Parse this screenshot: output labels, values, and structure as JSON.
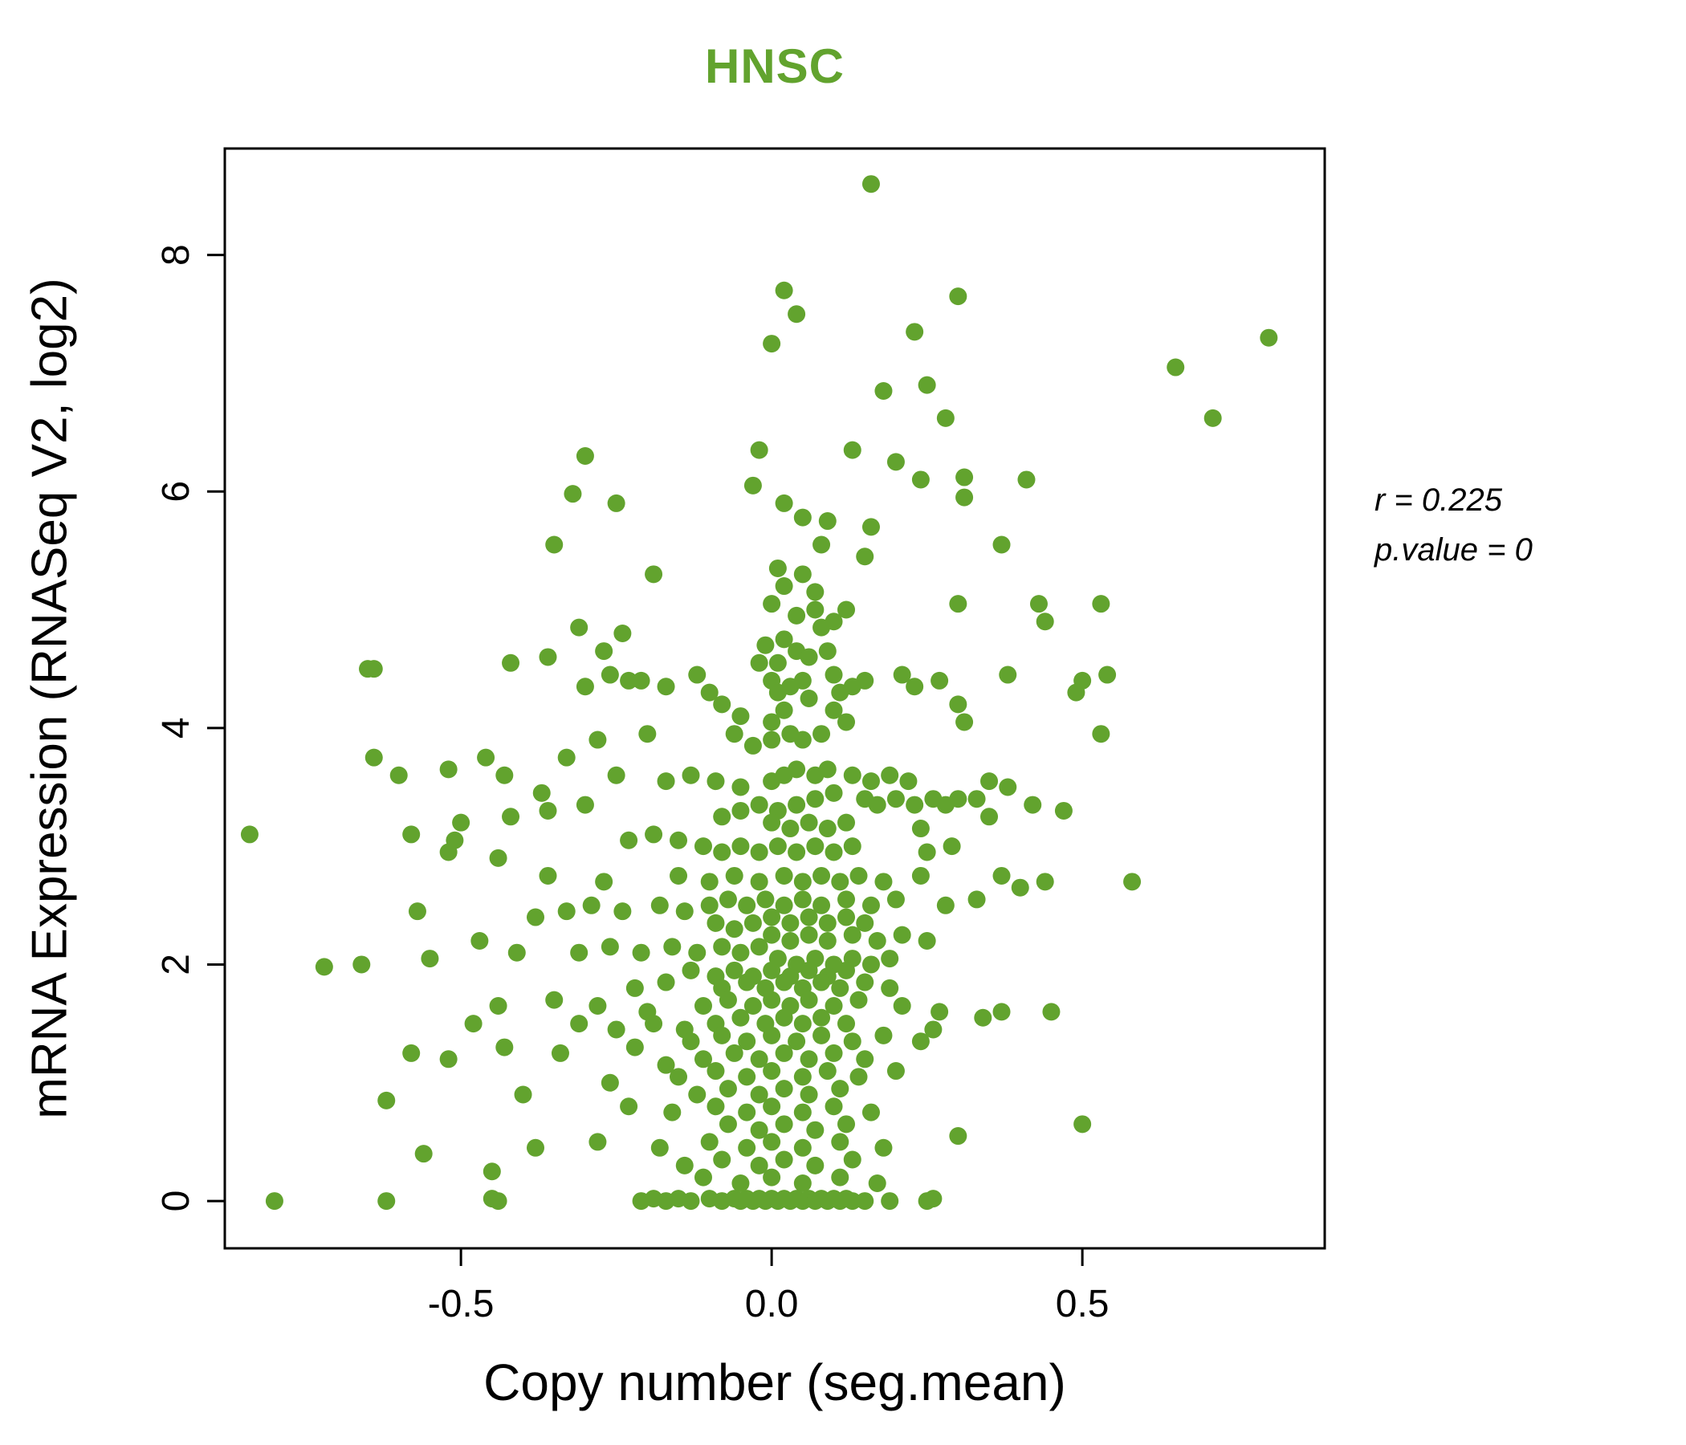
{
  "figure": {
    "title": "HNSC",
    "x_axis_title": "Copy number (seg.mean)",
    "y_axis_title": "mRNA Expression (RNASeq V2, log2)",
    "annotation": {
      "line1": "r = 0.225",
      "line2": "p.value = 0"
    }
  },
  "colors": {
    "accent_green": "#62a32e",
    "axis_black": "#000000",
    "background": "#ffffff"
  },
  "chart_data": {
    "type": "scatter",
    "title": "HNSC",
    "xlabel": "Copy number (seg.mean)",
    "ylabel": "mRNA Expression (RNASeq V2, log2)",
    "xlim": [
      -0.88,
      0.89
    ],
    "ylim": [
      -0.4,
      8.9
    ],
    "x_tick_values": [
      -0.5,
      0.0,
      0.5
    ],
    "x_tick_labels": [
      "-0.5",
      "0.0",
      "0.5"
    ],
    "y_tick_values": [
      0,
      2,
      4,
      6,
      8
    ],
    "y_tick_labels": [
      "0",
      "2",
      "4",
      "6",
      "8"
    ],
    "grid": false,
    "legend": false,
    "point_color": "#62a32e",
    "point_radius_px": 11,
    "correlation_r": 0.225,
    "p_value": 0,
    "points": [
      [
        0.16,
        8.6
      ],
      [
        0.02,
        7.7
      ],
      [
        0.04,
        7.5
      ],
      [
        0.3,
        7.65
      ],
      [
        0.23,
        7.35
      ],
      [
        0.0,
        7.25
      ],
      [
        0.8,
        7.3
      ],
      [
        0.65,
        7.05
      ],
      [
        0.71,
        6.62
      ],
      [
        0.25,
        6.9
      ],
      [
        0.28,
        6.62
      ],
      [
        0.18,
        6.85
      ],
      [
        0.13,
        6.35
      ],
      [
        -0.3,
        6.3
      ],
      [
        -0.32,
        5.98
      ],
      [
        0.2,
        6.25
      ],
      [
        0.24,
        6.1
      ],
      [
        0.31,
        6.12
      ],
      [
        -0.02,
        6.35
      ],
      [
        -0.03,
        6.05
      ],
      [
        0.02,
        5.9
      ],
      [
        0.05,
        5.78
      ],
      [
        0.09,
        5.75
      ],
      [
        0.08,
        5.55
      ],
      [
        0.16,
        5.7
      ],
      [
        0.15,
        5.45
      ],
      [
        -0.35,
        5.55
      ],
      [
        -0.19,
        5.3
      ],
      [
        0.01,
        5.35
      ],
      [
        0.02,
        5.2
      ],
      [
        0.0,
        5.05
      ],
      [
        0.04,
        4.95
      ],
      [
        0.07,
        5.0
      ],
      [
        0.3,
        5.05
      ],
      [
        0.37,
        5.55
      ],
      [
        0.43,
        5.05
      ],
      [
        0.44,
        4.9
      ],
      [
        0.53,
        5.05
      ],
      [
        0.08,
        4.85
      ],
      [
        0.09,
        4.65
      ],
      [
        -0.31,
        4.85
      ],
      [
        -0.36,
        4.6
      ],
      [
        -0.64,
        4.5
      ],
      [
        -0.42,
        4.55
      ],
      [
        -0.26,
        4.45
      ],
      [
        -0.23,
        4.4
      ],
      [
        0.38,
        4.45
      ],
      [
        0.5,
        4.4
      ],
      [
        0.54,
        4.45
      ],
      [
        0.49,
        4.3
      ],
      [
        0.53,
        3.95
      ],
      [
        0.3,
        4.2
      ],
      [
        0.31,
        4.05
      ],
      [
        -0.02,
        4.55
      ],
      [
        0.0,
        4.4
      ],
      [
        0.01,
        4.3
      ],
      [
        0.03,
        4.35
      ],
      [
        0.05,
        4.4
      ],
      [
        0.06,
        4.25
      ],
      [
        0.02,
        4.15
      ],
      [
        0.0,
        4.05
      ],
      [
        -0.05,
        4.1
      ],
      [
        -0.08,
        4.2
      ],
      [
        -0.1,
        4.3
      ],
      [
        -0.12,
        4.45
      ],
      [
        -0.17,
        4.35
      ],
      [
        0.1,
        4.45
      ],
      [
        0.11,
        4.3
      ],
      [
        0.13,
        4.35
      ],
      [
        0.15,
        4.4
      ],
      [
        0.1,
        4.15
      ],
      [
        0.12,
        4.05
      ],
      [
        0.08,
        3.95
      ],
      [
        0.05,
        3.9
      ],
      [
        0.03,
        3.95
      ],
      [
        0.0,
        3.9
      ],
      [
        -0.03,
        3.85
      ],
      [
        -0.06,
        3.95
      ],
      [
        -0.2,
        3.95
      ],
      [
        -0.28,
        3.9
      ],
      [
        -0.33,
        3.75
      ],
      [
        -0.46,
        3.75
      ],
      [
        -0.64,
        3.75
      ],
      [
        -0.52,
        3.65
      ],
      [
        -0.43,
        3.6
      ],
      [
        -0.37,
        3.45
      ],
      [
        -0.36,
        3.3
      ],
      [
        -0.3,
        3.35
      ],
      [
        -0.42,
        3.25
      ],
      [
        -0.5,
        3.2
      ],
      [
        -0.51,
        3.05
      ],
      [
        -0.52,
        2.95
      ],
      [
        -0.58,
        3.1
      ],
      [
        -0.84,
        3.1
      ],
      [
        -0.25,
        3.6
      ],
      [
        -0.17,
        3.55
      ],
      [
        -0.13,
        3.6
      ],
      [
        -0.09,
        3.55
      ],
      [
        -0.05,
        3.5
      ],
      [
        0.0,
        3.55
      ],
      [
        0.02,
        3.6
      ],
      [
        0.04,
        3.65
      ],
      [
        0.07,
        3.6
      ],
      [
        0.09,
        3.65
      ],
      [
        0.13,
        3.6
      ],
      [
        0.16,
        3.55
      ],
      [
        0.19,
        3.6
      ],
      [
        0.22,
        3.55
      ],
      [
        0.15,
        3.4
      ],
      [
        0.17,
        3.35
      ],
      [
        0.2,
        3.4
      ],
      [
        0.23,
        3.35
      ],
      [
        0.26,
        3.4
      ],
      [
        0.28,
        3.35
      ],
      [
        0.3,
        3.4
      ],
      [
        0.1,
        3.45
      ],
      [
        0.07,
        3.4
      ],
      [
        0.04,
        3.35
      ],
      [
        0.01,
        3.3
      ],
      [
        -0.02,
        3.35
      ],
      [
        -0.05,
        3.3
      ],
      [
        -0.08,
        3.25
      ],
      [
        0.0,
        3.2
      ],
      [
        0.03,
        3.15
      ],
      [
        0.06,
        3.2
      ],
      [
        0.09,
        3.15
      ],
      [
        0.12,
        3.2
      ],
      [
        0.24,
        3.15
      ],
      [
        0.35,
        3.25
      ],
      [
        0.42,
        3.35
      ],
      [
        0.29,
        3.0
      ],
      [
        0.25,
        2.95
      ],
      [
        0.13,
        3.0
      ],
      [
        0.1,
        2.95
      ],
      [
        0.07,
        3.0
      ],
      [
        0.04,
        2.95
      ],
      [
        0.01,
        3.0
      ],
      [
        -0.02,
        2.95
      ],
      [
        -0.05,
        3.0
      ],
      [
        -0.08,
        2.95
      ],
      [
        -0.11,
        3.0
      ],
      [
        -0.15,
        3.05
      ],
      [
        -0.19,
        3.1
      ],
      [
        -0.23,
        3.05
      ],
      [
        -0.44,
        2.9
      ],
      [
        -0.36,
        2.75
      ],
      [
        -0.27,
        2.7
      ],
      [
        -0.15,
        2.75
      ],
      [
        -0.1,
        2.7
      ],
      [
        -0.06,
        2.75
      ],
      [
        -0.02,
        2.7
      ],
      [
        0.02,
        2.75
      ],
      [
        0.05,
        2.7
      ],
      [
        0.08,
        2.75
      ],
      [
        0.11,
        2.7
      ],
      [
        0.14,
        2.75
      ],
      [
        0.18,
        2.7
      ],
      [
        0.24,
        2.75
      ],
      [
        0.37,
        2.75
      ],
      [
        0.4,
        2.65
      ],
      [
        0.44,
        2.7
      ],
      [
        0.58,
        2.7
      ],
      [
        0.33,
        2.55
      ],
      [
        0.28,
        2.5
      ],
      [
        0.2,
        2.55
      ],
      [
        0.16,
        2.5
      ],
      [
        0.12,
        2.55
      ],
      [
        0.08,
        2.5
      ],
      [
        0.05,
        2.55
      ],
      [
        0.02,
        2.5
      ],
      [
        -0.01,
        2.55
      ],
      [
        -0.04,
        2.5
      ],
      [
        -0.07,
        2.55
      ],
      [
        -0.1,
        2.5
      ],
      [
        -0.14,
        2.45
      ],
      [
        -0.18,
        2.5
      ],
      [
        -0.24,
        2.45
      ],
      [
        -0.29,
        2.5
      ],
      [
        -0.33,
        2.45
      ],
      [
        -0.38,
        2.4
      ],
      [
        -0.57,
        2.45
      ],
      [
        0.0,
        2.4
      ],
      [
        0.03,
        2.35
      ],
      [
        0.06,
        2.4
      ],
      [
        0.09,
        2.35
      ],
      [
        0.12,
        2.4
      ],
      [
        0.15,
        2.35
      ],
      [
        -0.03,
        2.35
      ],
      [
        -0.06,
        2.3
      ],
      [
        -0.09,
        2.35
      ],
      [
        0.0,
        2.25
      ],
      [
        0.03,
        2.2
      ],
      [
        0.06,
        2.25
      ],
      [
        0.09,
        2.2
      ],
      [
        0.13,
        2.25
      ],
      [
        0.17,
        2.2
      ],
      [
        0.21,
        2.25
      ],
      [
        0.25,
        2.2
      ],
      [
        -0.02,
        2.15
      ],
      [
        -0.05,
        2.1
      ],
      [
        -0.08,
        2.15
      ],
      [
        -0.12,
        2.1
      ],
      [
        -0.16,
        2.15
      ],
      [
        -0.21,
        2.1
      ],
      [
        -0.26,
        2.15
      ],
      [
        -0.31,
        2.1
      ],
      [
        -0.41,
        2.1
      ],
      [
        -0.55,
        2.05
      ],
      [
        -0.66,
        2.0
      ],
      [
        -0.72,
        1.98
      ],
      [
        0.01,
        2.05
      ],
      [
        0.04,
        2.0
      ],
      [
        0.07,
        2.05
      ],
      [
        0.1,
        2.0
      ],
      [
        0.13,
        2.05
      ],
      [
        0.16,
        2.0
      ],
      [
        0.19,
        2.05
      ],
      [
        0.0,
        1.95
      ],
      [
        0.03,
        1.9
      ],
      [
        0.06,
        1.95
      ],
      [
        0.09,
        1.9
      ],
      [
        0.12,
        1.95
      ],
      [
        -0.03,
        1.9
      ],
      [
        -0.06,
        1.95
      ],
      [
        -0.09,
        1.9
      ],
      [
        -0.13,
        1.95
      ],
      [
        0.02,
        1.85
      ],
      [
        0.05,
        1.8
      ],
      [
        0.08,
        1.85
      ],
      [
        0.11,
        1.8
      ],
      [
        0.15,
        1.85
      ],
      [
        0.19,
        1.8
      ],
      [
        -0.01,
        1.8
      ],
      [
        -0.04,
        1.85
      ],
      [
        -0.08,
        1.8
      ],
      [
        -0.17,
        1.85
      ],
      [
        -0.22,
        1.8
      ],
      [
        0.0,
        1.7
      ],
      [
        0.03,
        1.65
      ],
      [
        0.06,
        1.7
      ],
      [
        0.1,
        1.65
      ],
      [
        0.14,
        1.7
      ],
      [
        -0.03,
        1.65
      ],
      [
        -0.07,
        1.7
      ],
      [
        -0.11,
        1.65
      ],
      [
        -0.2,
        1.6
      ],
      [
        -0.28,
        1.65
      ],
      [
        -0.35,
        1.7
      ],
      [
        -0.44,
        1.65
      ],
      [
        0.21,
        1.65
      ],
      [
        0.27,
        1.6
      ],
      [
        0.34,
        1.55
      ],
      [
        0.45,
        1.6
      ],
      [
        0.02,
        1.55
      ],
      [
        0.05,
        1.5
      ],
      [
        0.08,
        1.55
      ],
      [
        0.12,
        1.5
      ],
      [
        -0.01,
        1.5
      ],
      [
        -0.05,
        1.55
      ],
      [
        -0.09,
        1.5
      ],
      [
        -0.14,
        1.45
      ],
      [
        -0.19,
        1.5
      ],
      [
        -0.25,
        1.45
      ],
      [
        -0.31,
        1.5
      ],
      [
        -0.48,
        1.5
      ],
      [
        0.0,
        1.4
      ],
      [
        0.04,
        1.35
      ],
      [
        0.08,
        1.4
      ],
      [
        0.13,
        1.35
      ],
      [
        0.18,
        1.4
      ],
      [
        0.24,
        1.35
      ],
      [
        -0.04,
        1.35
      ],
      [
        -0.08,
        1.4
      ],
      [
        -0.13,
        1.35
      ],
      [
        -0.22,
        1.3
      ],
      [
        -0.34,
        1.25
      ],
      [
        -0.43,
        1.3
      ],
      [
        0.02,
        1.25
      ],
      [
        0.06,
        1.2
      ],
      [
        0.1,
        1.25
      ],
      [
        0.15,
        1.2
      ],
      [
        -0.02,
        1.2
      ],
      [
        -0.06,
        1.25
      ],
      [
        -0.11,
        1.2
      ],
      [
        -0.17,
        1.15
      ],
      [
        0.0,
        1.1
      ],
      [
        0.05,
        1.05
      ],
      [
        0.09,
        1.1
      ],
      [
        0.14,
        1.05
      ],
      [
        0.2,
        1.1
      ],
      [
        -0.04,
        1.05
      ],
      [
        -0.09,
        1.1
      ],
      [
        -0.15,
        1.05
      ],
      [
        -0.26,
        1.0
      ],
      [
        -0.52,
        1.2
      ],
      [
        -0.58,
        1.25
      ],
      [
        0.02,
        0.95
      ],
      [
        0.06,
        0.9
      ],
      [
        0.11,
        0.95
      ],
      [
        -0.02,
        0.9
      ],
      [
        -0.07,
        0.95
      ],
      [
        -0.12,
        0.9
      ],
      [
        0.0,
        0.8
      ],
      [
        0.05,
        0.75
      ],
      [
        0.1,
        0.8
      ],
      [
        0.16,
        0.75
      ],
      [
        -0.04,
        0.75
      ],
      [
        -0.09,
        0.8
      ],
      [
        -0.16,
        0.75
      ],
      [
        -0.23,
        0.8
      ],
      [
        -0.62,
        0.85
      ],
      [
        0.02,
        0.65
      ],
      [
        0.07,
        0.6
      ],
      [
        0.12,
        0.65
      ],
      [
        -0.02,
        0.6
      ],
      [
        -0.07,
        0.65
      ],
      [
        0.0,
        0.5
      ],
      [
        0.05,
        0.45
      ],
      [
        0.11,
        0.5
      ],
      [
        0.18,
        0.45
      ],
      [
        -0.04,
        0.45
      ],
      [
        -0.1,
        0.5
      ],
      [
        -0.18,
        0.45
      ],
      [
        -0.28,
        0.5
      ],
      [
        -0.38,
        0.45
      ],
      [
        0.3,
        0.55
      ],
      [
        0.02,
        0.35
      ],
      [
        0.07,
        0.3
      ],
      [
        0.13,
        0.35
      ],
      [
        -0.02,
        0.3
      ],
      [
        -0.08,
        0.35
      ],
      [
        -0.14,
        0.3
      ],
      [
        0.0,
        0.2
      ],
      [
        0.05,
        0.15
      ],
      [
        0.11,
        0.2
      ],
      [
        0.17,
        0.15
      ],
      [
        -0.05,
        0.15
      ],
      [
        -0.11,
        0.2
      ],
      [
        -0.56,
        0.4
      ],
      [
        -0.45,
        0.25
      ],
      [
        -0.8,
        0.0
      ],
      [
        -0.62,
        0.0
      ],
      [
        -0.45,
        0.02
      ],
      [
        -0.44,
        0.0
      ],
      [
        -0.21,
        0.0
      ],
      [
        -0.19,
        0.02
      ],
      [
        -0.17,
        0.0
      ],
      [
        -0.15,
        0.02
      ],
      [
        -0.13,
        0.0
      ],
      [
        -0.1,
        0.02
      ],
      [
        -0.08,
        0.0
      ],
      [
        -0.06,
        0.02
      ],
      [
        -0.05,
        0.0
      ],
      [
        -0.04,
        0.02
      ],
      [
        -0.03,
        0.0
      ],
      [
        -0.02,
        0.02
      ],
      [
        -0.01,
        0.0
      ],
      [
        0.0,
        0.02
      ],
      [
        0.01,
        0.0
      ],
      [
        0.02,
        0.02
      ],
      [
        0.03,
        0.0
      ],
      [
        0.04,
        0.02
      ],
      [
        0.05,
        0.0
      ],
      [
        0.06,
        0.02
      ],
      [
        0.07,
        0.0
      ],
      [
        0.08,
        0.02
      ],
      [
        0.09,
        0.0
      ],
      [
        0.1,
        0.02
      ],
      [
        0.11,
        0.0
      ],
      [
        0.12,
        0.02
      ],
      [
        0.13,
        0.0
      ],
      [
        0.15,
        0.0
      ],
      [
        0.19,
        0.0
      ],
      [
        0.25,
        0.0
      ],
      [
        0.26,
        0.02
      ],
      [
        0.35,
        3.55
      ],
      [
        0.38,
        3.5
      ],
      [
        0.33,
        3.4
      ],
      [
        0.47,
        3.3
      ],
      [
        0.27,
        4.4
      ],
      [
        0.23,
        4.35
      ],
      [
        0.21,
        4.45
      ],
      [
        -0.3,
        4.35
      ],
      [
        -0.27,
        4.65
      ],
      [
        -0.24,
        4.8
      ],
      [
        -0.21,
        4.4
      ],
      [
        0.02,
        4.75
      ],
      [
        0.04,
        4.65
      ],
      [
        0.01,
        4.55
      ],
      [
        0.06,
        4.6
      ],
      [
        -0.01,
        4.7
      ],
      [
        0.05,
        5.3
      ],
      [
        0.07,
        5.15
      ],
      [
        0.12,
        5.0
      ],
      [
        0.1,
        4.9
      ],
      [
        0.41,
        6.1
      ],
      [
        0.31,
        5.95
      ],
      [
        -0.25,
        5.9
      ],
      [
        -0.65,
        4.5
      ],
      [
        0.37,
        1.6
      ],
      [
        0.5,
        0.65
      ],
      [
        0.26,
        1.45
      ],
      [
        -0.4,
        0.9
      ],
      [
        -0.47,
        2.2
      ],
      [
        -0.6,
        3.6
      ]
    ]
  }
}
